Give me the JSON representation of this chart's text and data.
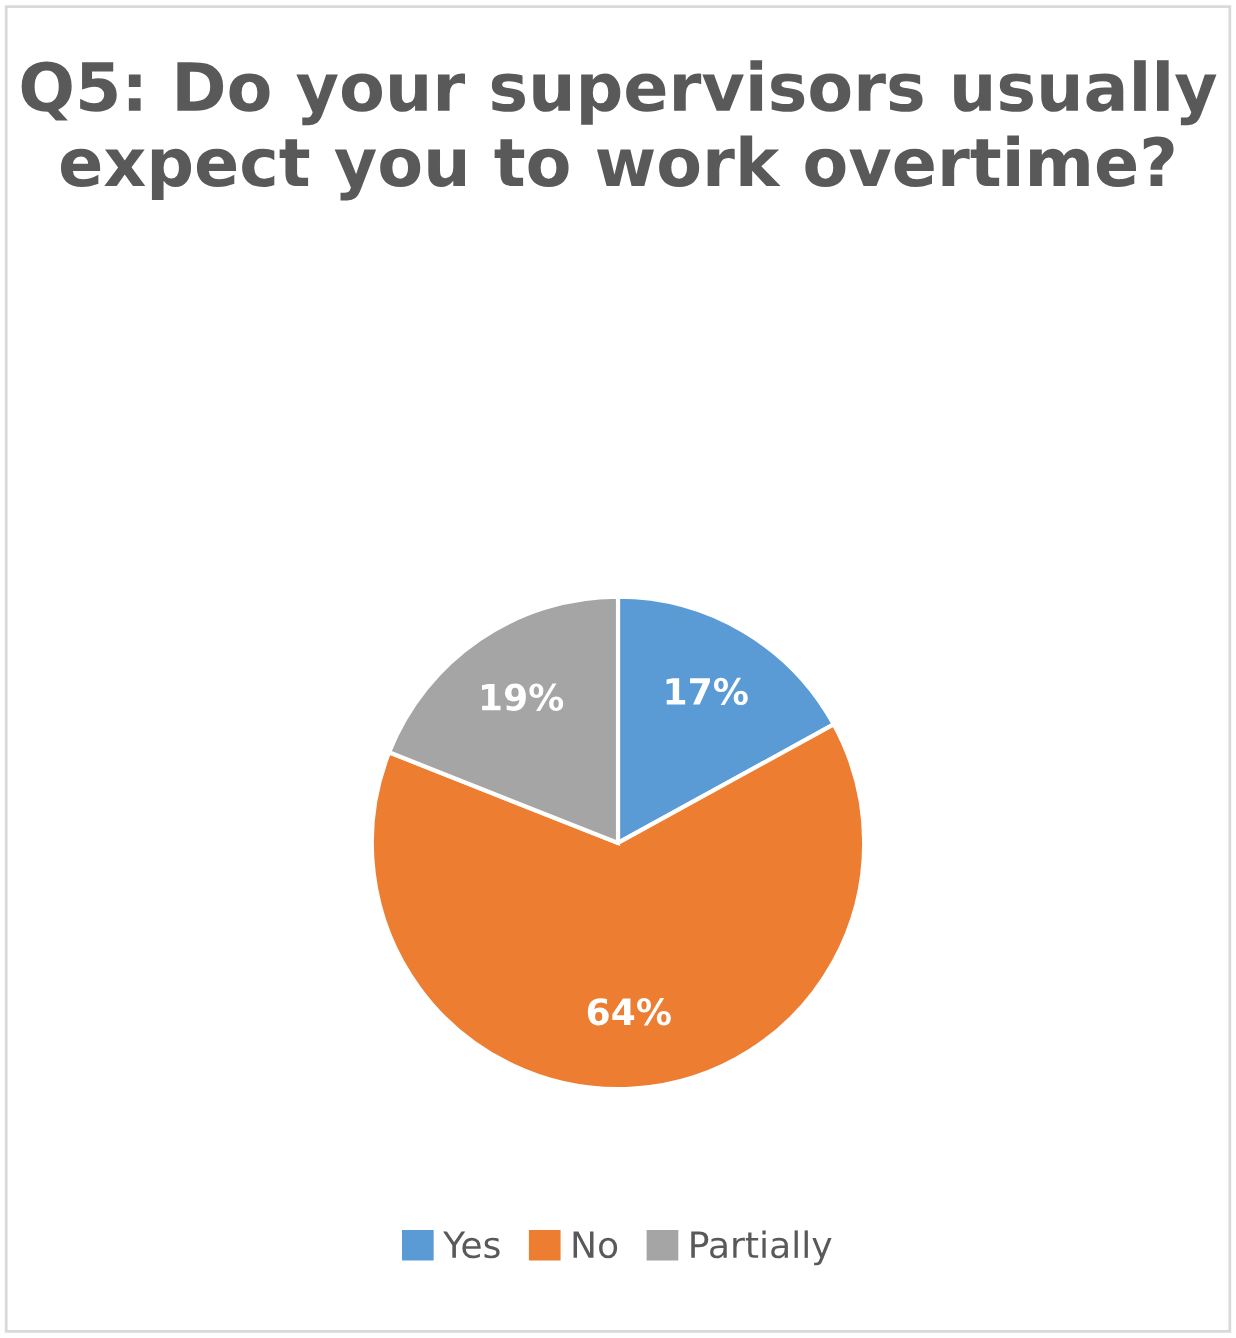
{
  "chart_data": {
    "type": "pie",
    "title": "Q5: Do your supervisors usually expect you to work overtime?",
    "categories": [
      "Yes",
      "No",
      "Partially"
    ],
    "values": [
      17,
      64,
      19
    ],
    "colors": [
      "#5b9bd5",
      "#ed7d31",
      "#a5a5a5"
    ],
    "value_labels": [
      "17%",
      "64%",
      "19%"
    ],
    "legend": "bottom"
  }
}
